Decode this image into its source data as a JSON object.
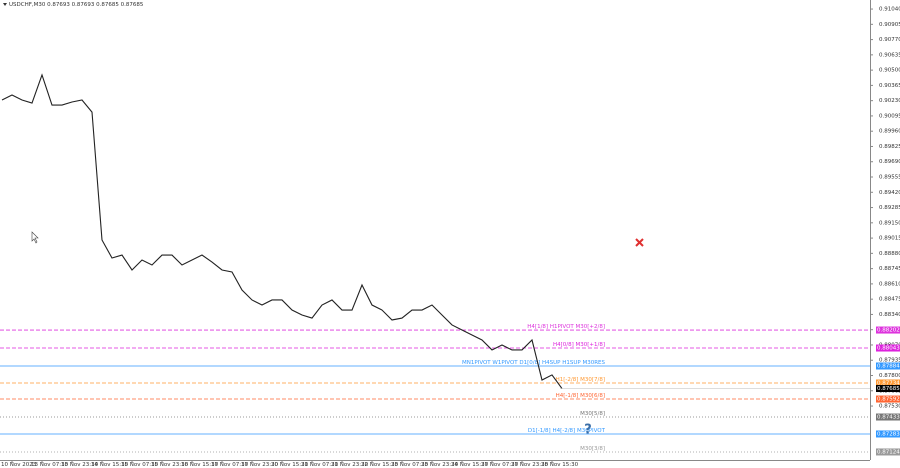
{
  "chart_data": {
    "type": "line",
    "title": "USDCHF,M30  0.87693 0.87693 0.87685 0.87685",
    "categories": [
      null,
      "10 Nov 2023",
      null,
      null,
      "13 Nov 07:30",
      null,
      null,
      "13 Nov 23:30",
      null,
      null,
      "14 Nov 15:30",
      null,
      null,
      "15 Nov 07:30",
      null,
      null,
      "15 Nov 23:30",
      null,
      null,
      "16 Nov 15:30",
      null,
      null,
      "17 Nov 07:30",
      null,
      null,
      "17 Nov 23:30",
      null,
      null,
      "20 Nov 15:30",
      null,
      null,
      "21 Nov 07:30",
      null,
      null,
      "21 Nov 23:30",
      null,
      null,
      "22 Nov 15:30",
      null,
      null,
      "23 Nov 07:30",
      null,
      null,
      "23 Nov 23:30",
      null,
      null,
      "24 Nov 15:30",
      null,
      null,
      "27 Nov 07:30",
      null,
      null,
      "27 Nov 23:30",
      null,
      null,
      "28 Nov 15:30",
      null
    ],
    "values": [
      0.90236,
      0.9028,
      0.90236,
      0.90209,
      0.90457,
      0.90191,
      0.90191,
      0.90218,
      0.90236,
      0.90129,
      0.88998,
      0.88839,
      0.88865,
      0.88733,
      0.88821,
      0.88777,
      0.88865,
      0.88865,
      0.88777,
      0.88821,
      0.88865,
      0.88803,
      0.88733,
      0.88715,
      0.88556,
      0.88468,
      0.88423,
      0.88468,
      0.88468,
      0.88379,
      0.88335,
      0.88308,
      0.88423,
      0.88468,
      0.88379,
      0.88379,
      0.886,
      0.88423,
      0.88379,
      0.88291,
      0.88308,
      0.88379,
      0.88379,
      0.88423,
      0.88335,
      0.88247,
      0.88202,
      0.88158,
      0.88114,
      0.88026,
      0.8807,
      0.88026,
      0.88026,
      0.88114,
      0.8776,
      0.87805,
      0.87685
    ],
    "color": "#222222",
    "current_price": 0.87685,
    "ylim": [
      0.87053,
      0.9112
    ],
    "yticks": [
      {
        "value": 0.9104,
        "label": "0.91040"
      },
      0.90905,
      {
        "value": 0.9077,
        "label": "0.90770"
      },
      0.90635,
      {
        "value": 0.905,
        "label": "0.90500"
      },
      0.90365,
      {
        "value": 0.9023,
        "label": "0.90230"
      },
      0.90095,
      {
        "value": 0.8996,
        "label": "0.89960"
      },
      0.89825,
      {
        "value": 0.8969,
        "label": "0.89690"
      },
      0.89555,
      {
        "value": 0.8942,
        "label": "0.89420"
      },
      0.89285,
      {
        "value": 0.8915,
        "label": "0.89150"
      },
      0.89015,
      {
        "value": 0.8888,
        "label": "0.88880"
      },
      0.88745,
      {
        "value": 0.8861,
        "label": "0.88610"
      },
      0.88475,
      {
        "value": 0.8834,
        "label": "0.88340"
      },
      0.88205,
      {
        "value": 0.8807,
        "label": "0.88070"
      },
      0.87935,
      {
        "value": 0.878,
        "label": "0.87800"
      },
      0.87665,
      {
        "value": 0.8753,
        "label": "0.87530"
      }
    ],
    "levels": [
      {
        "label": "H4[1/8] H1PIVOT M30[+2/8]",
        "value": 0.88202,
        "color": "#dd33dd",
        "style": "dashed"
      },
      {
        "label": "H4[0/8] M30[+1/8]",
        "value": 0.88043,
        "color": "#dd22dd",
        "style": "dashed"
      },
      {
        "label": "MN1PIVOT W1PIVOT D1[0/8] H4SUP H1SUP M30RES",
        "value": 0.87884,
        "color": "#3399ff",
        "style": "solid"
      },
      {
        "label": "H1[-2/8] M30[7/8]",
        "value": 0.87734,
        "color": "#ff9933",
        "style": "dashed"
      },
      {
        "label": "H4[-1/8] M30[6/8]",
        "value": 0.87592,
        "color": "#ff6633",
        "style": "dashed"
      },
      {
        "label": "M30[5/8]",
        "value": 0.87433,
        "color": "#777777",
        "style": "dotted"
      },
      {
        "label": "D1[-1/8] H4[-2/8] M30PIVOT",
        "value": 0.87283,
        "color": "#3399ff",
        "style": "solid"
      },
      {
        "label": "M30[3/8]",
        "value": 0.87124,
        "color": "#999999",
        "style": "dotted"
      }
    ]
  }
}
